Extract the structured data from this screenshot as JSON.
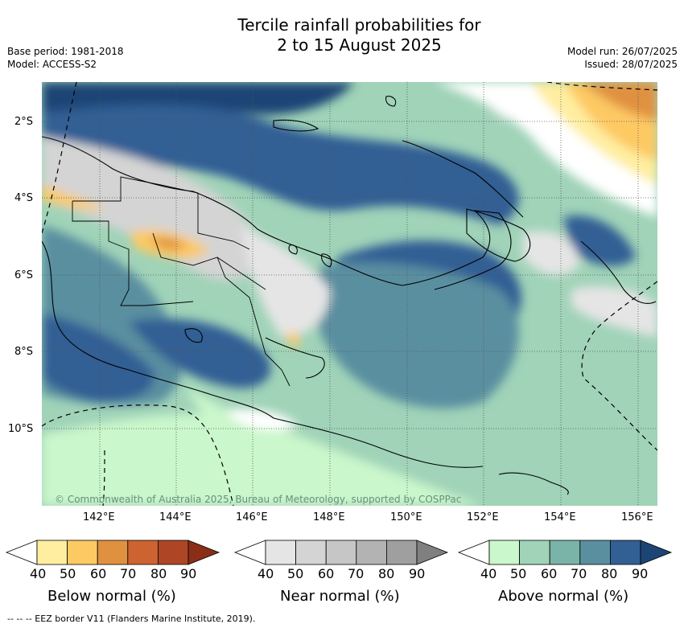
{
  "title": {
    "line1": "Tercile rainfall probabilities for",
    "line2": "2 to 15 August 2025"
  },
  "meta_left": {
    "base_period": "Base period: 1981-2018",
    "model": "Model: ACCESS-S2"
  },
  "meta_right": {
    "model_run": "Model run: 26/07/2025",
    "issued": "Issued: 28/07/2025"
  },
  "map": {
    "region": "Papua New Guinea",
    "latitude_labels": [
      "2°S",
      "4°S",
      "6°S",
      "8°S",
      "10°S"
    ],
    "longitude_labels": [
      "142°E",
      "144°E",
      "146°E",
      "148°E",
      "150°E",
      "152°E",
      "154°E",
      "156°E"
    ],
    "copyright": "© Commonwealth of Australia 2025, Bureau of Meteorology, supported by COSPPac"
  },
  "colorbars": [
    {
      "label": "Below normal (%)",
      "ticks": [
        "40",
        "50",
        "60",
        "70",
        "80",
        "90"
      ],
      "colors": [
        "#ffeea0",
        "#fdc963",
        "#e0913f",
        "#cd6330",
        "#ae4625",
        "#8a2e18"
      ]
    },
    {
      "label": "Near normal (%)",
      "ticks": [
        "40",
        "50",
        "60",
        "70",
        "80",
        "90"
      ],
      "colors": [
        "#e5e5e5",
        "#d4d4d4",
        "#c6c6c6",
        "#b3b3b3",
        "#9f9f9f",
        "#808080"
      ]
    },
    {
      "label": "Above normal (%)",
      "ticks": [
        "40",
        "50",
        "60",
        "70",
        "80",
        "90"
      ],
      "colors": [
        "#caf7cb",
        "#a0d3b8",
        "#7ab3a7",
        "#5a8fa0",
        "#325f94",
        "#1c4576"
      ]
    }
  ],
  "footnote": "-- -- -- EEZ border V11 (Flanders Marine Institute, 2019)."
}
